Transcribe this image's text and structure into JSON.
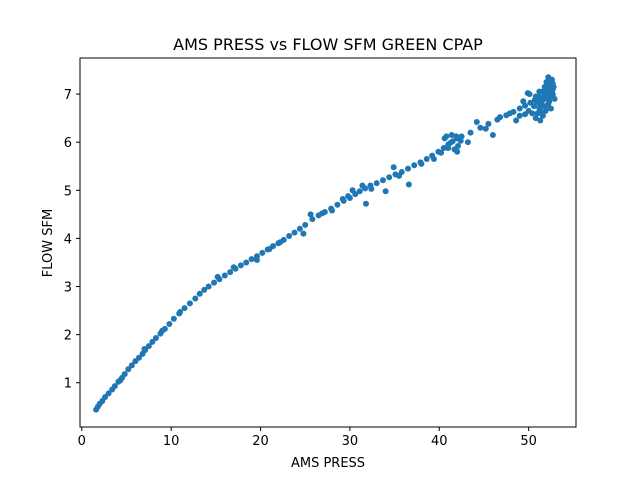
{
  "chart_data": {
    "type": "scatter",
    "title": "AMS PRESS vs FLOW SFM GREEN CPAP",
    "xlabel": "AMS PRESS",
    "ylabel": "FLOW SFM",
    "xlim": [
      -0.2,
      55.3
    ],
    "ylim": [
      0.08,
      7.75
    ],
    "xticks": [
      0,
      10,
      20,
      30,
      40,
      50
    ],
    "yticks": [
      1,
      2,
      3,
      4,
      5,
      6,
      7
    ],
    "grid": false,
    "marker_color": "#1f77b4",
    "points": [
      [
        1.6,
        0.44
      ],
      [
        1.8,
        0.5
      ],
      [
        2.0,
        0.56
      ],
      [
        2.3,
        0.62
      ],
      [
        2.6,
        0.7
      ],
      [
        3.0,
        0.78
      ],
      [
        3.4,
        0.86
      ],
      [
        3.7,
        0.93
      ],
      [
        4.1,
        1.02
      ],
      [
        4.5,
        1.1
      ],
      [
        4.8,
        1.18
      ],
      [
        5.2,
        1.28
      ],
      [
        5.6,
        1.36
      ],
      [
        6.0,
        1.45
      ],
      [
        6.4,
        1.52
      ],
      [
        6.8,
        1.6
      ],
      [
        7.1,
        1.68
      ],
      [
        7.5,
        1.76
      ],
      [
        7.9,
        1.85
      ],
      [
        8.3,
        1.93
      ],
      [
        8.8,
        2.02
      ],
      [
        9.3,
        2.12
      ],
      [
        9.8,
        2.22
      ],
      [
        10.3,
        2.33
      ],
      [
        10.9,
        2.44
      ],
      [
        11.5,
        2.55
      ],
      [
        12.1,
        2.65
      ],
      [
        12.7,
        2.75
      ],
      [
        13.2,
        2.85
      ],
      [
        13.7,
        2.93
      ],
      [
        14.2,
        3.0
      ],
      [
        14.8,
        3.08
      ],
      [
        15.4,
        3.15
      ],
      [
        16.0,
        3.23
      ],
      [
        16.6,
        3.3
      ],
      [
        17.2,
        3.37
      ],
      [
        17.8,
        3.44
      ],
      [
        18.4,
        3.5
      ],
      [
        19.0,
        3.57
      ],
      [
        19.6,
        3.63
      ],
      [
        20.2,
        3.7
      ],
      [
        20.8,
        3.77
      ],
      [
        21.4,
        3.84
      ],
      [
        22.0,
        3.9
      ],
      [
        22.6,
        3.97
      ],
      [
        23.2,
        4.05
      ],
      [
        23.8,
        4.12
      ],
      [
        24.4,
        4.2
      ],
      [
        25.0,
        4.28
      ],
      [
        25.8,
        4.4
      ],
      [
        26.5,
        4.48
      ],
      [
        27.2,
        4.55
      ],
      [
        27.9,
        4.62
      ],
      [
        28.6,
        4.7
      ],
      [
        29.3,
        4.78
      ],
      [
        30.0,
        4.84
      ],
      [
        30.6,
        4.92
      ],
      [
        31.1,
        4.98
      ],
      [
        31.7,
        5.04
      ],
      [
        32.3,
        5.1
      ],
      [
        33.0,
        5.15
      ],
      [
        33.7,
        5.21
      ],
      [
        34.4,
        5.27
      ],
      [
        35.1,
        5.33
      ],
      [
        35.8,
        5.38
      ],
      [
        36.5,
        5.45
      ],
      [
        37.2,
        5.52
      ],
      [
        37.9,
        5.58
      ],
      [
        38.6,
        5.65
      ],
      [
        39.2,
        5.72
      ],
      [
        39.9,
        5.8
      ],
      [
        40.5,
        5.88
      ],
      [
        41.0,
        5.95
      ],
      [
        41.5,
        6.02
      ],
      [
        42.0,
        6.08
      ],
      [
        42.5,
        6.12
      ],
      [
        43.5,
        6.2
      ],
      [
        44.6,
        6.3
      ],
      [
        45.5,
        6.38
      ],
      [
        46.5,
        6.47
      ],
      [
        47.5,
        6.56
      ],
      [
        48.3,
        6.63
      ],
      [
        49.0,
        6.7
      ],
      [
        49.6,
        6.76
      ],
      [
        50.2,
        6.82
      ],
      [
        50.7,
        6.88
      ],
      [
        51.2,
        6.93
      ],
      [
        51.8,
        6.98
      ],
      [
        52.3,
        7.05
      ],
      [
        52.7,
        7.1
      ],
      [
        4.3,
        1.05
      ],
      [
        7.0,
        1.7
      ],
      [
        9.0,
        2.08
      ],
      [
        11.0,
        2.47
      ],
      [
        15.2,
        3.2
      ],
      [
        17.0,
        3.4
      ],
      [
        19.6,
        3.55
      ],
      [
        21.0,
        3.78
      ],
      [
        22.2,
        3.92
      ],
      [
        24.8,
        4.1
      ],
      [
        25.6,
        4.5
      ],
      [
        26.9,
        4.52
      ],
      [
        28.0,
        4.58
      ],
      [
        29.2,
        4.82
      ],
      [
        29.8,
        4.88
      ],
      [
        30.3,
        5.0
      ],
      [
        31.4,
        5.1
      ],
      [
        31.8,
        4.72
      ],
      [
        32.4,
        5.03
      ],
      [
        34.0,
        4.98
      ],
      [
        34.9,
        5.48
      ],
      [
        35.5,
        5.3
      ],
      [
        36.6,
        5.12
      ],
      [
        38.0,
        5.55
      ],
      [
        39.4,
        5.65
      ],
      [
        40.2,
        5.78
      ],
      [
        40.6,
        6.08
      ],
      [
        41.2,
        5.98
      ],
      [
        41.7,
        5.85
      ],
      [
        41.9,
        6.12
      ],
      [
        42.1,
        5.92
      ],
      [
        42.4,
        6.03
      ],
      [
        41.4,
        6.15
      ],
      [
        40.8,
        6.12
      ],
      [
        41.0,
        5.88
      ],
      [
        42.0,
        5.8
      ],
      [
        43.2,
        6.0
      ],
      [
        44.2,
        6.42
      ],
      [
        45.2,
        6.28
      ],
      [
        46.0,
        6.15
      ],
      [
        46.8,
        6.52
      ],
      [
        47.9,
        6.6
      ],
      [
        48.6,
        6.45
      ],
      [
        49.0,
        6.55
      ],
      [
        49.4,
        6.85
      ],
      [
        49.6,
        6.58
      ],
      [
        49.9,
        7.02
      ],
      [
        50.0,
        6.65
      ],
      [
        50.1,
        7.0
      ],
      [
        50.4,
        6.6
      ],
      [
        50.6,
        6.75
      ],
      [
        50.8,
        6.5
      ],
      [
        50.9,
        6.85
      ],
      [
        51.0,
        6.6
      ],
      [
        51.1,
        6.95
      ],
      [
        51.2,
        6.7
      ],
      [
        51.3,
        6.45
      ],
      [
        51.4,
        6.8
      ],
      [
        51.5,
        7.05
      ],
      [
        51.6,
        6.55
      ],
      [
        51.7,
        6.9
      ],
      [
        51.8,
        7.15
      ],
      [
        51.9,
        6.65
      ],
      [
        52.0,
        7.25
      ],
      [
        52.1,
        6.95
      ],
      [
        52.2,
        7.35
      ],
      [
        52.3,
        6.85
      ],
      [
        52.4,
        7.2
      ],
      [
        52.5,
        6.7
      ],
      [
        52.6,
        7.3
      ],
      [
        52.7,
        7.0
      ],
      [
        52.8,
        7.15
      ],
      [
        52.9,
        6.9
      ],
      [
        52.6,
        7.05
      ],
      [
        52.4,
        6.95
      ],
      [
        52.2,
        6.8
      ],
      [
        52.0,
        6.7
      ],
      [
        51.8,
        6.75
      ],
      [
        51.6,
        6.88
      ],
      [
        51.4,
        6.92
      ],
      [
        51.2,
        7.05
      ],
      [
        51.0,
        6.82
      ],
      [
        50.8,
        6.95
      ],
      [
        51.9,
        7.1
      ],
      [
        52.1,
        7.18
      ],
      [
        52.3,
        7.28
      ],
      [
        52.5,
        7.12
      ],
      [
        52.7,
        7.22
      ],
      [
        51.5,
        6.62
      ],
      [
        51.3,
        6.72
      ]
    ]
  }
}
